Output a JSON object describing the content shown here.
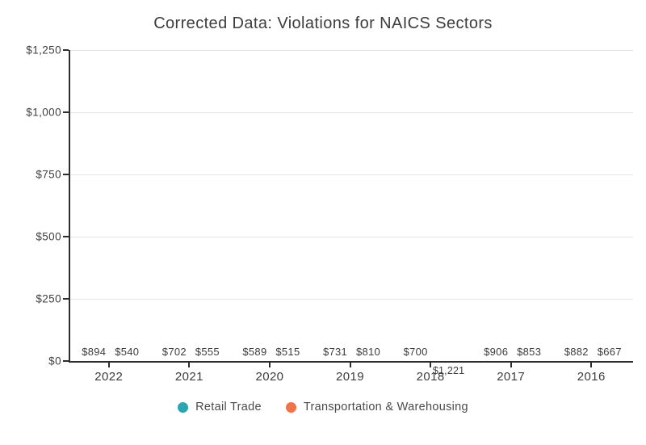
{
  "title": "Corrected Data: Violations for NAICS Sectors",
  "chart_data": {
    "type": "bar",
    "categories": [
      "2022",
      "2021",
      "2020",
      "2019",
      "2018",
      "2017",
      "2016"
    ],
    "series": [
      {
        "name": "Retail Trade",
        "color": "#2AA5B3",
        "values": [
          894,
          702,
          589,
          731,
          700,
          906,
          882
        ]
      },
      {
        "name": "Transportation & Warehousing",
        "color": "#F0734A",
        "values": [
          540,
          555,
          515,
          810,
          1221,
          853,
          667
        ]
      }
    ],
    "title": "Corrected Data: Violations for NAICS Sectors",
    "xlabel": "",
    "ylabel": "",
    "ylim": [
      0,
      1250
    ],
    "yticks": [
      0,
      250,
      500,
      750,
      1000,
      1250
    ],
    "ytick_labels": [
      "$0",
      "$250",
      "$500",
      "$750",
      "$1,000",
      "$1,250"
    ],
    "value_prefix": "$",
    "grid": true,
    "legend_position": "bottom"
  },
  "colors": {
    "axis": "#2d2d2d",
    "grid": "#e5e5e5",
    "text": "#3d3d3d",
    "background": "#ffffff"
  }
}
